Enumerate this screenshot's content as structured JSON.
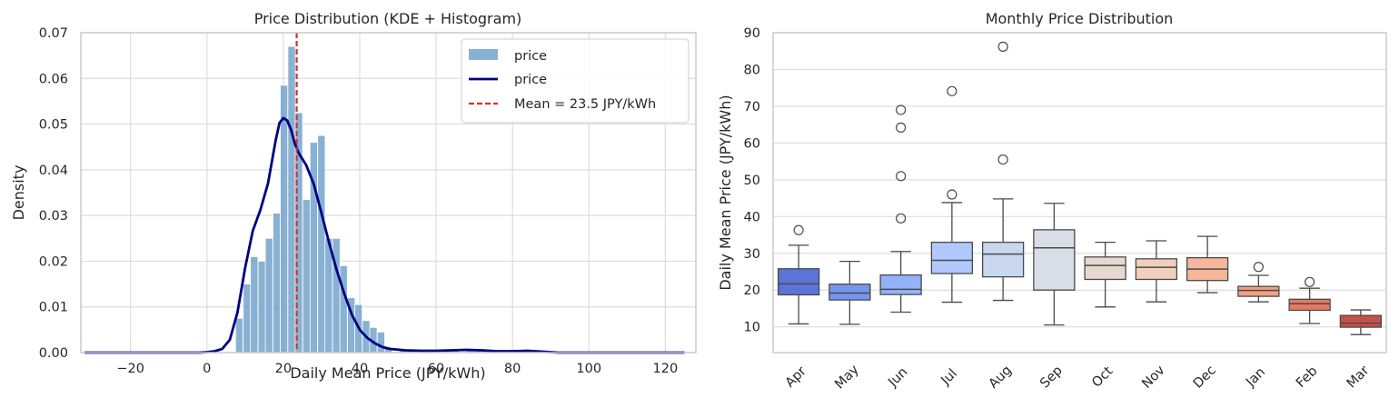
{
  "chart_data": [
    {
      "type": "histogram+kde",
      "title": "Price Distribution (KDE + Histogram)",
      "xlabel": "Daily Mean Price (JPY/kWh)",
      "ylabel": "Density",
      "xlim": [
        -33,
        128
      ],
      "ylim": [
        0,
        0.07
      ],
      "xticks": [
        -20,
        0,
        20,
        40,
        60,
        80,
        100,
        120
      ],
      "xtick_labels": [
        "−20",
        "0",
        "20",
        "40",
        "60",
        "80",
        "100",
        "120"
      ],
      "yticks": [
        0,
        0.01,
        0.02,
        0.03,
        0.04,
        0.05,
        0.06,
        0.07
      ],
      "ytick_labels": [
        "0.00",
        "0.01",
        "0.02",
        "0.03",
        "0.04",
        "0.05",
        "0.06",
        "0.07"
      ],
      "grid": true,
      "histogram": {
        "label": "price",
        "bin_width": 1.95,
        "bins": [
          [
            7.5,
            0.0075
          ],
          [
            9.5,
            0.015
          ],
          [
            11.4,
            0.021
          ],
          [
            13.4,
            0.02
          ],
          [
            15.3,
            0.025
          ],
          [
            17.3,
            0.0305
          ],
          [
            19.2,
            0.0585
          ],
          [
            21.2,
            0.067
          ],
          [
            23.1,
            0.0525
          ],
          [
            25.1,
            0.0335
          ],
          [
            27.0,
            0.046
          ],
          [
            29.0,
            0.0475
          ],
          [
            30.9,
            0.025
          ],
          [
            32.9,
            0.025
          ],
          [
            34.8,
            0.019
          ],
          [
            36.8,
            0.012
          ],
          [
            38.7,
            0.0105
          ],
          [
            40.7,
            0.007
          ],
          [
            42.6,
            0.0055
          ],
          [
            44.6,
            0.0045
          ],
          [
            46.5,
            0.001
          ],
          [
            50.4,
            0.0005
          ],
          [
            52.4,
            0.0005
          ],
          [
            56.3,
            0.0005
          ],
          [
            62.1,
            0.0005
          ],
          [
            64.1,
            0.0005
          ],
          [
            68.0,
            0.0005
          ],
          [
            70.0,
            0.0005
          ],
          [
            71.9,
            0.0005
          ],
          [
            85.6,
            0.0005
          ]
        ]
      },
      "kde": {
        "label": "price",
        "points": [
          [
            -32,
            0.0
          ],
          [
            -2,
            0.0
          ],
          [
            0,
            0.0001
          ],
          [
            2,
            0.0003
          ],
          [
            4,
            0.0008
          ],
          [
            6,
            0.0028
          ],
          [
            8,
            0.0088
          ],
          [
            10,
            0.0185
          ],
          [
            12,
            0.0266
          ],
          [
            14,
            0.0312
          ],
          [
            16,
            0.037
          ],
          [
            18,
            0.0465
          ],
          [
            19,
            0.0503
          ],
          [
            20,
            0.0513
          ],
          [
            21,
            0.0508
          ],
          [
            22,
            0.0488
          ],
          [
            23,
            0.0458
          ],
          [
            24,
            0.0437
          ],
          [
            26,
            0.041
          ],
          [
            28,
            0.0368
          ],
          [
            30,
            0.0305
          ],
          [
            32,
            0.024
          ],
          [
            34,
            0.018
          ],
          [
            36,
            0.0128
          ],
          [
            38,
            0.0082
          ],
          [
            40,
            0.005
          ],
          [
            42,
            0.0032
          ],
          [
            44,
            0.002
          ],
          [
            46,
            0.0012
          ],
          [
            48,
            0.0008
          ],
          [
            52,
            0.0005
          ],
          [
            56,
            0.0004
          ],
          [
            60,
            0.0004
          ],
          [
            64,
            0.0005
          ],
          [
            68,
            0.0006
          ],
          [
            72,
            0.0005
          ],
          [
            76,
            0.0003
          ],
          [
            80,
            0.0003
          ],
          [
            84,
            0.0004
          ],
          [
            88,
            0.0002
          ],
          [
            92,
            0.0
          ],
          [
            125,
            0.0
          ]
        ]
      },
      "mean_line": {
        "value": 23.5,
        "label": "Mean = 23.5 JPY/kWh"
      },
      "legend": {
        "location": "upper right",
        "entries": [
          "price",
          "price",
          "Mean = 23.5 JPY/kWh"
        ]
      },
      "colors": {
        "hist": "#6b9dc8",
        "kde": "#000080",
        "mean": "#cc3333"
      }
    },
    {
      "type": "boxplot",
      "title": "Monthly Price Distribution",
      "xlabel": "",
      "ylabel": "Daily Mean Price (JPY/kWh)",
      "ylim": [
        3,
        90
      ],
      "yticks": [
        10,
        20,
        30,
        40,
        50,
        60,
        70,
        80,
        90
      ],
      "grid": true,
      "categories": [
        "Apr",
        "May",
        "Jun",
        "Jul",
        "Aug",
        "Sep",
        "Oct",
        "Nov",
        "Dec",
        "Jan",
        "Feb",
        "Mar"
      ],
      "boxes": [
        {
          "month": "Apr",
          "whislo": 10.8,
          "q1": 18.7,
          "med": 21.7,
          "q3": 25.8,
          "whishi": 32.2,
          "fliers": [
            36.3
          ],
          "color": "#5a74d8"
        },
        {
          "month": "May",
          "whislo": 10.7,
          "q1": 17.3,
          "med": 19.2,
          "q3": 21.6,
          "whishi": 27.8,
          "fliers": [],
          "color": "#7596ef"
        },
        {
          "month": "Jun",
          "whislo": 14.0,
          "q1": 18.8,
          "med": 20.2,
          "q3": 24.1,
          "whishi": 30.5,
          "fliers": [
            39.5,
            51.0,
            64.2,
            69.0
          ],
          "color": "#94b2fa"
        },
        {
          "month": "Jul",
          "whislo": 16.7,
          "q1": 24.5,
          "med": 28.1,
          "q3": 33.0,
          "whishi": 43.8,
          "fliers": [
            46.0,
            74.1
          ],
          "color": "#b1c8fd"
        },
        {
          "month": "Aug",
          "whislo": 17.2,
          "q1": 23.6,
          "med": 29.8,
          "q3": 33.0,
          "whishi": 44.8,
          "fliers": [
            55.5,
            86.2
          ],
          "color": "#c9d7f0"
        },
        {
          "month": "Sep",
          "whislo": 10.5,
          "q1": 20.0,
          "med": 31.5,
          "q3": 36.4,
          "whishi": 43.6,
          "fliers": [],
          "color": "#d9dde6"
        },
        {
          "month": "Oct",
          "whislo": 15.4,
          "q1": 22.9,
          "med": 26.7,
          "q3": 29.0,
          "whishi": 33.0,
          "fliers": [],
          "color": "#e7d8d1"
        },
        {
          "month": "Nov",
          "whislo": 16.8,
          "q1": 22.9,
          "med": 26.2,
          "q3": 28.5,
          "whishi": 33.4,
          "fliers": [],
          "color": "#f0cfbd"
        },
        {
          "month": "Dec",
          "whislo": 19.3,
          "q1": 22.6,
          "med": 25.7,
          "q3": 28.8,
          "whishi": 34.6,
          "fliers": [],
          "color": "#f5b69b"
        },
        {
          "month": "Jan",
          "whislo": 16.8,
          "q1": 18.3,
          "med": 19.9,
          "q3": 21.0,
          "whishi": 24.0,
          "fliers": [
            26.3
          ],
          "color": "#f1a082"
        },
        {
          "month": "Feb",
          "whislo": 10.9,
          "q1": 14.5,
          "med": 16.3,
          "q3": 17.5,
          "whishi": 20.5,
          "fliers": [
            22.2
          ],
          "color": "#e57a62"
        },
        {
          "month": "Mar",
          "whislo": 7.9,
          "q1": 9.9,
          "med": 11.0,
          "q3": 13.1,
          "whishi": 14.6,
          "fliers": [],
          "color": "#c8504a"
        }
      ]
    }
  ]
}
